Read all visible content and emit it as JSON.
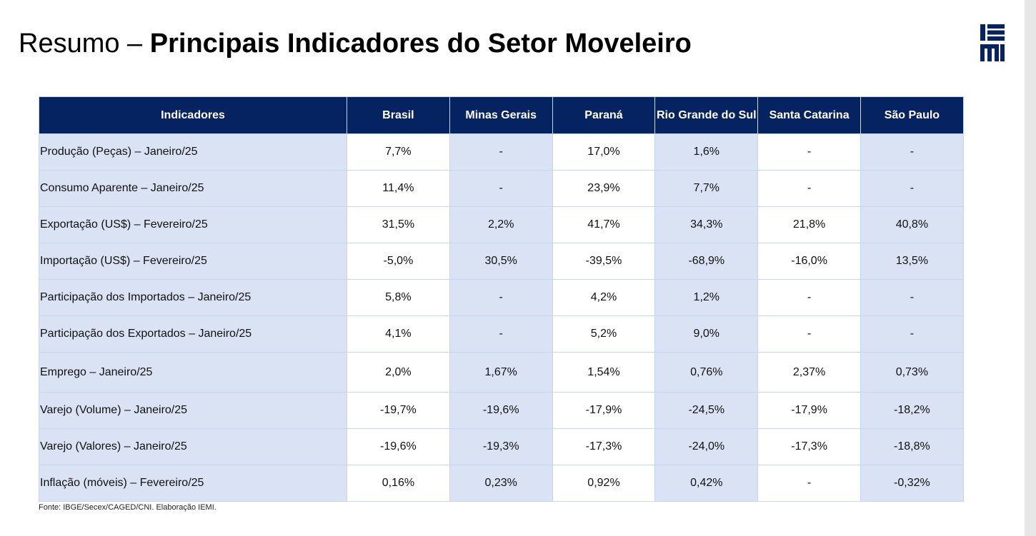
{
  "title": {
    "prefix": "Resumo –",
    "main": "Principais Indicadores do Setor Moveleiro"
  },
  "logo": {
    "text": "IEMI",
    "icon": "iemi-logo-icon",
    "color": "#062361"
  },
  "colors": {
    "header_bg": "#062361",
    "shade": "#dae3f4",
    "border": "#c7d6ec"
  },
  "table": {
    "headers": [
      "Indicadores",
      "Brasil",
      "Minas Gerais",
      "Paraná",
      "Rio Grande do Sul",
      "Santa Catarina",
      "São Paulo"
    ],
    "rows": [
      {
        "label": "Produção (Peças) – Janeiro/25",
        "values": [
          "7,7%",
          "-",
          "17,0%",
          "1,6%",
          "-",
          "-"
        ]
      },
      {
        "label": "Consumo Aparente – Janeiro/25",
        "values": [
          "11,4%",
          "-",
          "23,9%",
          "7,7%",
          "-",
          "-"
        ]
      },
      {
        "label": "Exportação (US$) – Fevereiro/25",
        "values": [
          "31,5%",
          "2,2%",
          "41,7%",
          "34,3%",
          "21,8%",
          "40,8%"
        ]
      },
      {
        "label": "Importação (US$) – Fevereiro/25",
        "values": [
          "-5,0%",
          "30,5%",
          "-39,5%",
          "-68,9%",
          "-16,0%",
          "13,5%"
        ]
      },
      {
        "label": "Participação dos Importados – Janeiro/25",
        "values": [
          "5,8%",
          "-",
          "4,2%",
          "1,2%",
          "-",
          "-"
        ]
      },
      {
        "label": "Participação dos Exportados – Janeiro/25",
        "values": [
          "4,1%",
          "-",
          "5,2%",
          "9,0%",
          "-",
          "-"
        ]
      },
      {
        "label": "Emprego – Janeiro/25",
        "values": [
          "2,0%",
          "1,67%",
          "1,54%",
          "0,76%",
          "2,37%",
          "0,73%"
        ]
      },
      {
        "label": "Varejo (Volume) – Janeiro/25",
        "values": [
          "-19,7%",
          "-19,6%",
          "-17,9%",
          "-24,5%",
          "-17,9%",
          "-18,2%"
        ]
      },
      {
        "label": "Varejo (Valores) – Janeiro/25",
        "values": [
          "-19,6%",
          "-19,3%",
          "-17,3%",
          "-24,0%",
          "-17,3%",
          "-18,8%"
        ]
      },
      {
        "label": "Inflação (móveis)  – Fevereiro/25",
        "values": [
          "0,16%",
          "0,23%",
          "0,92%",
          "0,42%",
          "-",
          "-0,32%"
        ]
      }
    ]
  },
  "source": "Fonte: IBGE/Secex/CAGED/CNI. Elaboração IEMI."
}
